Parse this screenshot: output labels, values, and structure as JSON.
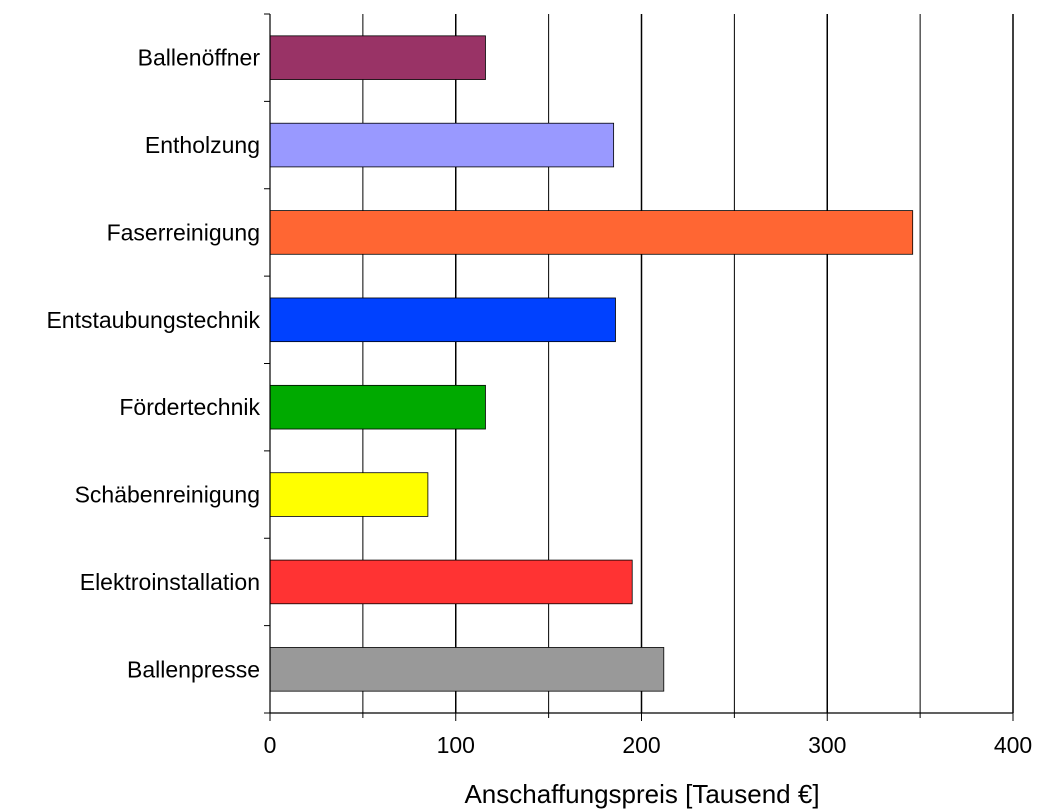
{
  "chart_data": {
    "type": "bar",
    "orientation": "horizontal",
    "categories": [
      "Ballenöffner",
      "Entholzung",
      "Faserreinigung",
      "Entstaubungstechnik",
      "Fördertechnik",
      "Schäbenreinigung",
      "Elektroinstallation",
      "Ballenpresse"
    ],
    "values": [
      116,
      185,
      346,
      186,
      116,
      85,
      195,
      212
    ],
    "colors": [
      "#993366",
      "#9999ff",
      "#ff6633",
      "#0041ff",
      "#00aa00",
      "#ffff00",
      "#ff3333",
      "#999999"
    ],
    "title": "",
    "xlabel": "Anschaffungspreis [Tausend €]",
    "ylabel": "",
    "xlim": [
      0,
      400
    ],
    "xticks": [
      0,
      100,
      200,
      300,
      400
    ],
    "xtick_labels": [
      "0",
      "100",
      "200",
      "300",
      "400"
    ],
    "minor_gridlines": [
      50,
      150,
      250,
      350
    ],
    "grid": "vertical",
    "legend": "none"
  }
}
